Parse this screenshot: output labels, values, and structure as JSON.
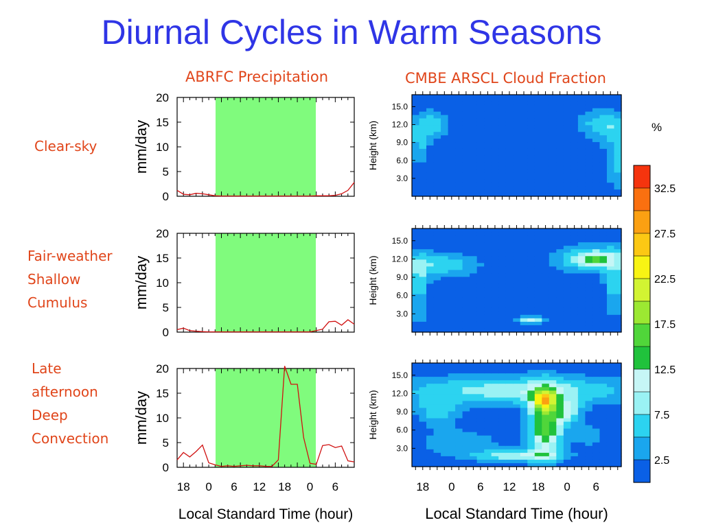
{
  "title": "Diurnal Cycles in Warm Seasons",
  "column_titles": {
    "precip": "ABRFC Precipitation",
    "cloud": "CMBE ARSCL Cloud Fraction"
  },
  "row_labels": [
    [
      "Clear-sky"
    ],
    [
      "Fair-weather",
      "Shallow",
      "Cumulus"
    ],
    [
      "Late",
      "afternoon",
      "Deep",
      "Convection"
    ]
  ],
  "colors": {
    "title": "#2f35e6",
    "labels": "#e0451a",
    "daytime_shading": "#80fb7d",
    "precip_line": "#d01010"
  },
  "chart_data": [
    {
      "type": "line",
      "panel": "Clear-sky precipitation",
      "ylabel": "mm/day",
      "xlabel": "",
      "yticks": [
        0,
        5,
        10,
        15,
        20
      ],
      "ylim": [
        0,
        20
      ],
      "shaded_band": "daytime",
      "series": [
        {
          "values": [
            1.2,
            0.4,
            0.3,
            0.6,
            0.5,
            0.3,
            0.1,
            0.05,
            0.05,
            0.05,
            0.05,
            0.05,
            0.05,
            0.05,
            0.05,
            0.05,
            0.05,
            0.05,
            0.05,
            0.05,
            0.05,
            0.05,
            0.1,
            0.1,
            0.1,
            0.2,
            0.5,
            1.2,
            2.8
          ]
        }
      ]
    },
    {
      "type": "heatmap",
      "panel": "Clear-sky cloud fraction",
      "ylabel": "Height (km)",
      "xlabel": "",
      "yticks": [
        3.0,
        6.0,
        9.0,
        12.0,
        15.0
      ],
      "ylim": [
        0,
        17
      ],
      "colorbar_units": "%",
      "colorbar_ticks": [
        2.5,
        7.5,
        12.5,
        17.5,
        22.5,
        27.5,
        32.5
      ]
    },
    {
      "type": "line",
      "panel": "Fair-weather shallow cumulus precipitation",
      "ylabel": "mm/day",
      "xlabel": "",
      "yticks": [
        0,
        5,
        10,
        15,
        20
      ],
      "ylim": [
        0,
        20
      ],
      "shaded_band": "daytime",
      "series": [
        {
          "values": [
            0.5,
            0.8,
            0.3,
            0.2,
            0.1,
            0.05,
            0.05,
            0.05,
            0.05,
            0.05,
            0.05,
            0.05,
            0.05,
            0.05,
            0.05,
            0.05,
            0.05,
            0.05,
            0.05,
            0.05,
            0.05,
            0.05,
            0.3,
            0.6,
            2.1,
            2.2,
            1.4,
            2.5,
            1.6
          ]
        }
      ]
    },
    {
      "type": "heatmap",
      "panel": "Fair-weather shallow cumulus cloud fraction",
      "ylabel": "Height (km)",
      "xlabel": "",
      "yticks": [
        3.0,
        6.0,
        9.0,
        12.0,
        15.0
      ],
      "ylim": [
        0,
        17
      ]
    },
    {
      "type": "line",
      "panel": "Late afternoon deep convection precipitation",
      "ylabel": "mm/day",
      "xlabel": "Local Standard Time (hour)",
      "yticks": [
        0,
        5,
        10,
        15,
        20
      ],
      "ylim": [
        0,
        20
      ],
      "xtick_labels": [
        "18",
        "0",
        "6",
        "12",
        "18",
        "0",
        "6"
      ],
      "shaded_band": "daytime",
      "series": [
        {
          "values": [
            1.5,
            3.0,
            2.1,
            3.2,
            4.5,
            0.9,
            0.5,
            0.2,
            0.3,
            0.2,
            0.3,
            0.4,
            0.3,
            0.3,
            0.2,
            0.2,
            1.5,
            20.5,
            16.8,
            16.8,
            6.0,
            0.8,
            0.6,
            4.4,
            4.6,
            4.0,
            4.3,
            1.3,
            1.1
          ]
        }
      ]
    },
    {
      "type": "heatmap",
      "panel": "Late afternoon deep convection cloud fraction",
      "ylabel": "Height (km)",
      "xlabel": "Local Standard Time (hour)",
      "yticks": [
        3.0,
        6.0,
        9.0,
        12.0,
        15.0
      ],
      "ylim": [
        0,
        17
      ],
      "xtick_labels": [
        "18",
        "0",
        "6",
        "12",
        "18",
        "0",
        "6"
      ]
    }
  ]
}
